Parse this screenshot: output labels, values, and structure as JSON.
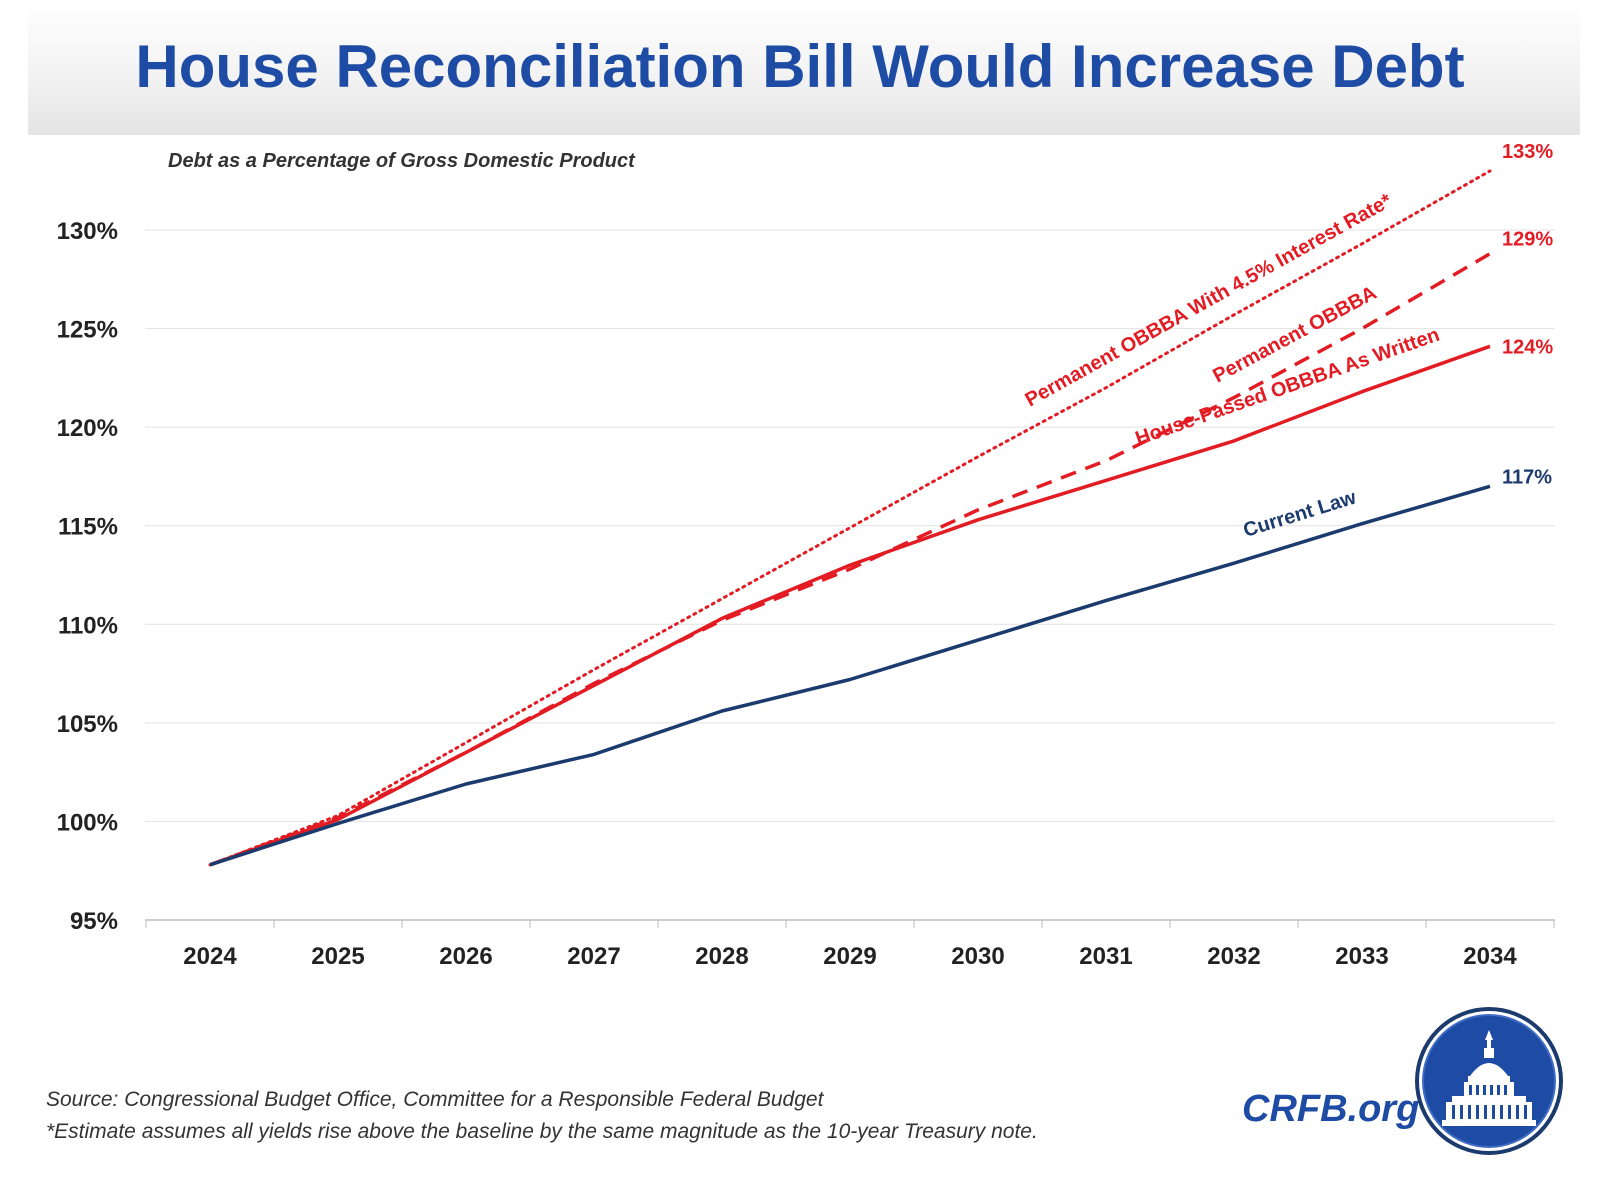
{
  "header": {
    "title": "House Reconciliation Bill Would Increase Debt",
    "subtitle": "Debt as a Percentage of Gross Domestic Product"
  },
  "footer": {
    "source": "Source: Congressional Budget Office, Committee for a Responsible Federal Budget",
    "note": "*Estimate assumes all yields rise above the baseline by the same magnitude as the 10-year Treasury note."
  },
  "brand": {
    "name": "CRFB.org",
    "logo_icon": "capitol-dome-icon"
  },
  "colors": {
    "title": "#1e4ba3",
    "red": "#e31b23",
    "navy": "#1b3a6e",
    "grid": "#e2e2e2"
  },
  "chart_data": {
    "type": "line",
    "title": "Debt as a Percentage of Gross Domestic Product",
    "xlabel": "",
    "ylabel": "",
    "x": [
      2024,
      2025,
      2026,
      2027,
      2028,
      2029,
      2030,
      2031,
      2032,
      2033,
      2034
    ],
    "y_ticks": [
      "95%",
      "100%",
      "105%",
      "110%",
      "115%",
      "120%",
      "125%",
      "130%"
    ],
    "ylim": [
      95,
      130
    ],
    "grid": "horizontal",
    "series": [
      {
        "name": "Permanent OBBBA With 4.5% Interest Rate*",
        "style": "dotted",
        "color": "#e31b23",
        "values": [
          97.8,
          100.3,
          104.0,
          107.7,
          111.3,
          114.9,
          118.5,
          122.0,
          125.7,
          129.3,
          133.0
        ],
        "end_label": "133%"
      },
      {
        "name": "Permanent OBBBA",
        "style": "dashed",
        "color": "#e31b23",
        "values": [
          97.8,
          100.2,
          103.5,
          107.0,
          110.2,
          112.8,
          115.8,
          118.3,
          121.5,
          125.0,
          128.8
        ],
        "end_label": "129%"
      },
      {
        "name": "House-Passed OBBBA As Written",
        "style": "solid",
        "color": "#e31b23",
        "values": [
          97.8,
          100.1,
          103.5,
          106.9,
          110.3,
          113.0,
          115.3,
          117.3,
          119.3,
          121.8,
          124.1
        ],
        "end_label": "124%"
      },
      {
        "name": "Current Law",
        "style": "solid",
        "color": "#1b3a6e",
        "values": [
          97.8,
          99.9,
          101.9,
          103.4,
          105.6,
          107.2,
          109.2,
          111.2,
          113.1,
          115.1,
          117.0
        ],
        "end_label": "117%"
      }
    ]
  }
}
